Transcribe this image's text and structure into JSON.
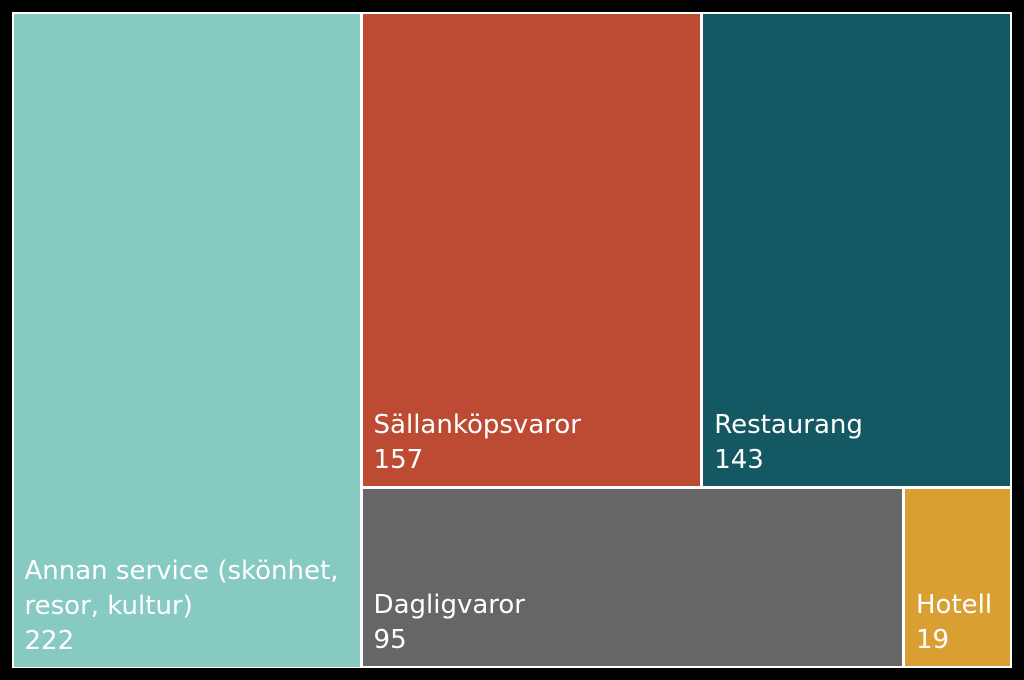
{
  "chart_data": {
    "type": "treemap",
    "title": "",
    "items": [
      {
        "label": "Annan service (skönhet,\nresor, kultur)",
        "value": 222,
        "value_label": "222",
        "color": "#86cac2"
      },
      {
        "label": "Sällanköpsvaror",
        "value": 157,
        "value_label": "157",
        "color": "#bd4a33"
      },
      {
        "label": "Restaurang",
        "value": 143,
        "value_label": "143",
        "color": "#135862"
      },
      {
        "label": "Dagligvaror",
        "value": 95,
        "value_label": "95",
        "color": "#666668"
      },
      {
        "label": "Hotell",
        "value": 19,
        "value_label": "19",
        "color": "#d99f33"
      }
    ],
    "background": "#000000",
    "border_color": "#ffffff"
  }
}
